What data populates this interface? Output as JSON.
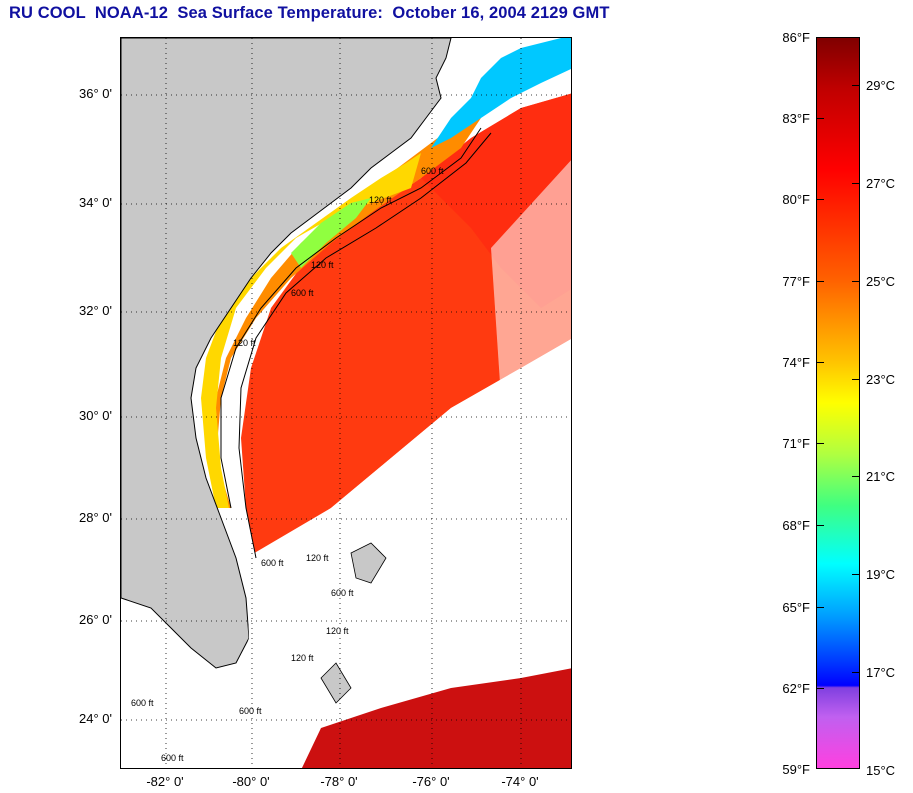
{
  "title": "RU COOL  NOAA-12  Sea Surface Temperature:  October 16, 2004 2129 GMT",
  "map": {
    "lat_labels": [
      "36° 0'",
      "34° 0'",
      "32° 0'",
      "30° 0'",
      "28° 0'",
      "26° 0'",
      "24° 0'"
    ],
    "lon_labels": [
      "-82° 0'",
      "-80° 0'",
      "-78° 0'",
      "-76° 0'",
      "-74° 0'"
    ],
    "contour_labels": [
      "120 ft",
      "600 ft",
      "120 ft",
      "600 ft",
      "120 ft",
      "600 ft",
      "120 ft",
      "600 ft",
      "120 ft",
      "600 ft",
      "120 ft",
      "600 ft",
      "600 ft"
    ],
    "colors": {
      "land": "#c8c8c8",
      "cloud": "#ffffff",
      "gulf_stream": "#ff3a10",
      "shelf_warm": "#ff8c00",
      "near_shore": "#ffd800",
      "cold_coastal": "#00c8ff"
    }
  },
  "colorbar": {
    "fahrenheit": [
      "86°F",
      "83°F",
      "80°F",
      "77°F",
      "74°F",
      "71°F",
      "68°F",
      "65°F",
      "62°F",
      "59°F"
    ],
    "celsius": [
      "29°C",
      "27°C",
      "25°C",
      "23°C",
      "21°C",
      "19°C",
      "17°C",
      "15°C"
    ]
  }
}
